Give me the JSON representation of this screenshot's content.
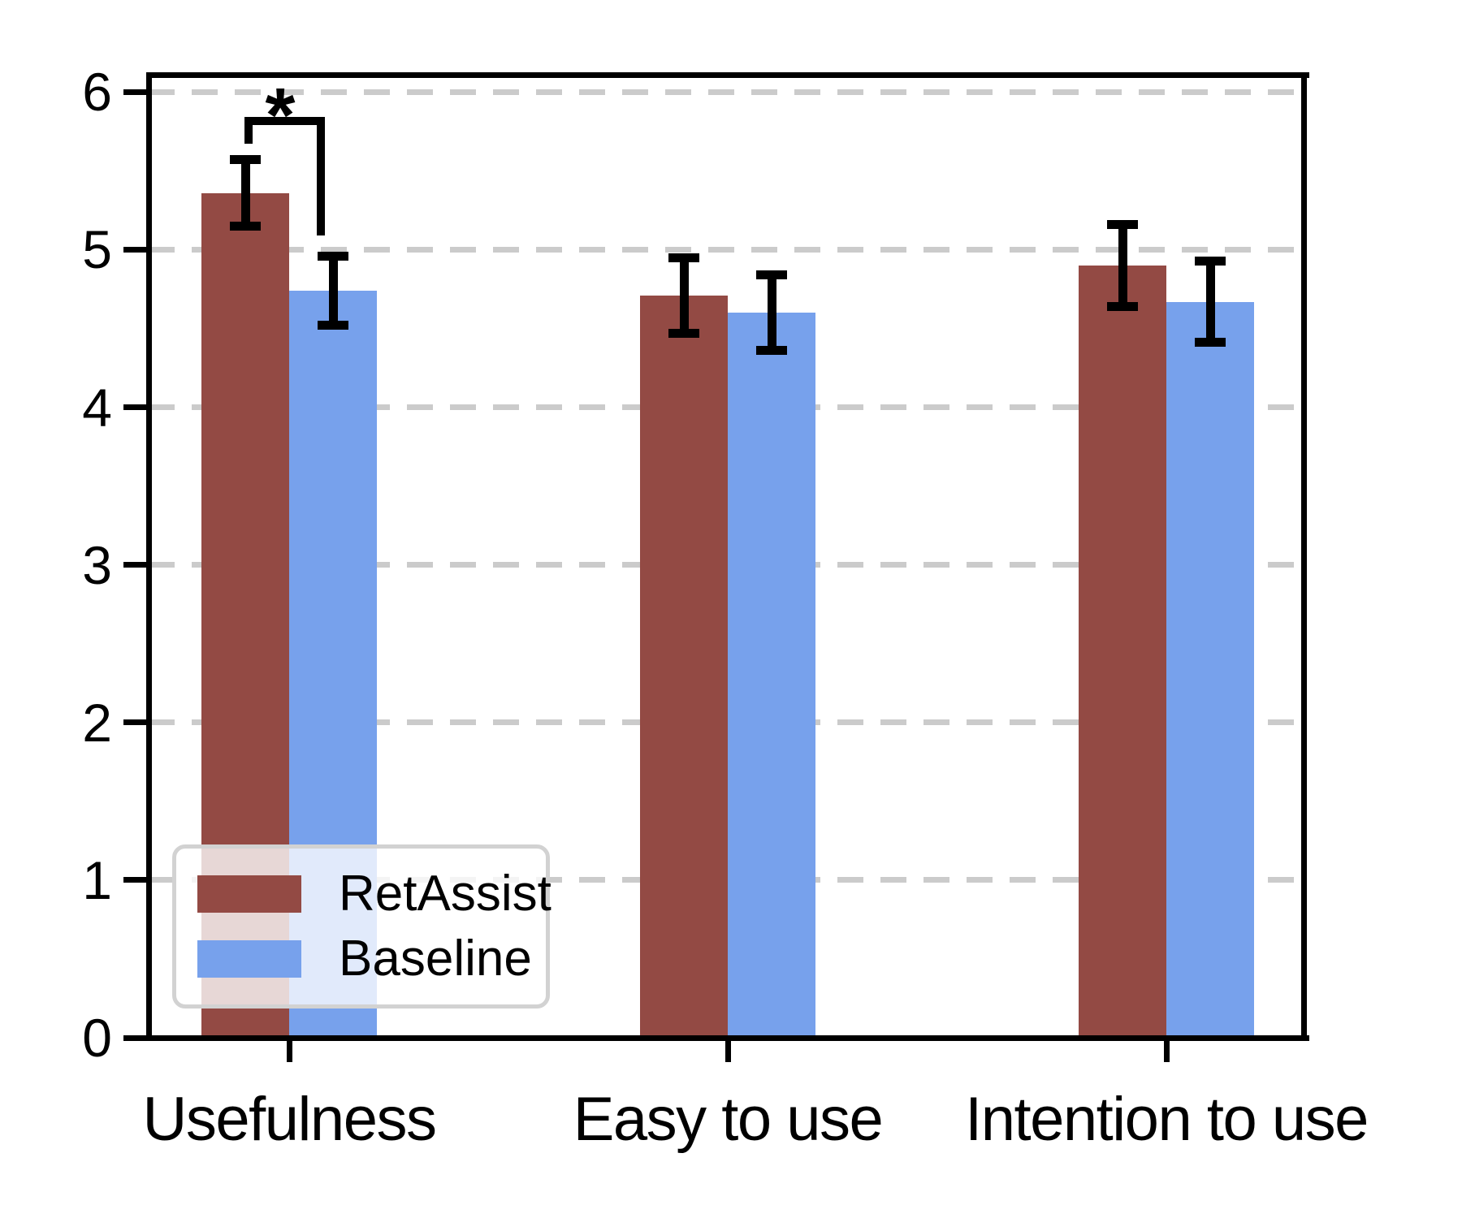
{
  "figure": {
    "background": "#ffffff"
  },
  "chart_data": {
    "type": "bar",
    "title": "",
    "xlabel": "",
    "ylabel": "",
    "categories": [
      "Usefulness",
      "Easy to use",
      "Intention to use"
    ],
    "series": [
      {
        "name": "RetAssist",
        "color": "#934A44",
        "values": [
          5.36,
          4.71,
          4.9
        ],
        "errors": [
          0.21,
          0.24,
          0.26
        ]
      },
      {
        "name": "Baseline",
        "color": "#77A1EC",
        "values": [
          4.74,
          4.6,
          4.67
        ],
        "errors": [
          0.22,
          0.24,
          0.26
        ]
      }
    ],
    "yticks": [
      0,
      1,
      2,
      3,
      4,
      5,
      6
    ],
    "ylim": [
      0,
      6.11
    ],
    "grid": {
      "axis": "y",
      "style": "dashed",
      "color": "#cbcbcb"
    },
    "errorbar_color": "#000000",
    "legend": {
      "position": "lower left",
      "entries": [
        "RetAssist",
        "Baseline"
      ]
    },
    "significance": {
      "category": "Usefulness",
      "between": [
        "RetAssist",
        "Baseline"
      ],
      "label": "*"
    }
  }
}
